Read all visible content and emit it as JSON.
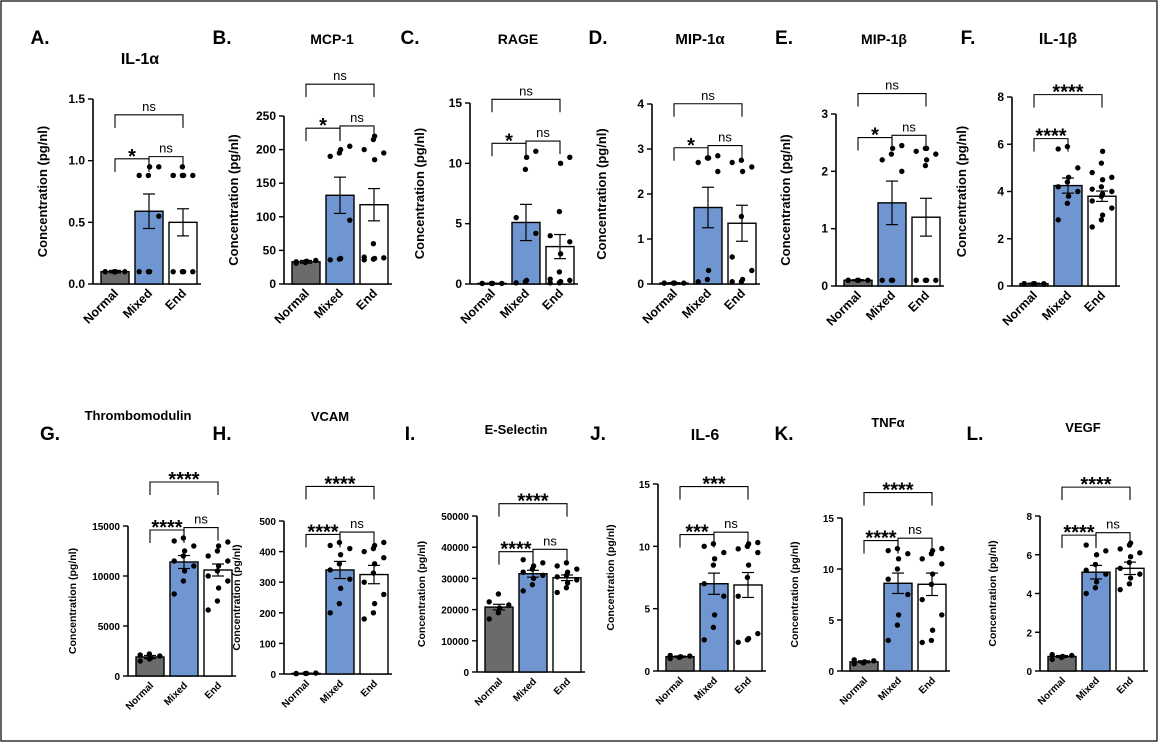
{
  "colors": {
    "normal": "#6b6b6b",
    "mixed": "#7096d1",
    "end": "#ffffff"
  },
  "chart_data": [
    {
      "type": "bar",
      "letter": "A.",
      "title": "IL-1α",
      "ylabel": "Concentration (pg/nl)",
      "categories": [
        "Normal",
        "Mixed",
        "End"
      ],
      "ylim": [
        0,
        1.5
      ],
      "yticks": [
        0,
        0.5,
        1.0,
        1.5
      ],
      "ytick_labels": [
        "0.0",
        "0.5",
        "1.0",
        "1.5"
      ],
      "values": [
        0.1,
        0.59,
        0.5
      ],
      "sem": [
        0.01,
        0.14,
        0.11
      ],
      "points": [
        [
          0.1,
          0.1,
          0.1,
          0.1,
          0.1,
          0.1
        ],
        [
          0.1,
          0.1,
          0.1,
          0.55,
          0.88,
          0.88,
          0.95,
          0.95
        ],
        [
          0.1,
          0.1,
          0.1,
          0.1,
          0.88,
          0.88,
          0.88,
          0.88,
          0.88,
          0.95
        ]
      ],
      "comparisons": [
        {
          "from": 0,
          "to": 1,
          "label": "*"
        },
        {
          "from": 1,
          "to": 2,
          "label": "ns"
        },
        {
          "from": 0,
          "to": 2,
          "label": "ns"
        }
      ]
    },
    {
      "type": "bar",
      "letter": "B.",
      "title": "MCP-1",
      "ylabel": "Concentration (pg/nl)",
      "categories": [
        "Normal",
        "Mixed",
        "End"
      ],
      "ylim": [
        0,
        250
      ],
      "yticks": [
        0,
        50,
        100,
        150,
        200,
        250
      ],
      "ytick_labels": [
        "0",
        "50",
        "100",
        "150",
        "200",
        "250"
      ],
      "values": [
        33,
        132,
        118
      ],
      "sem": [
        2,
        27,
        24
      ],
      "points": [
        [
          31,
          33,
          34,
          35,
          33,
          32
        ],
        [
          36,
          37,
          38,
          95,
          190,
          195,
          200,
          205
        ],
        [
          36,
          37,
          38,
          39,
          40,
          60,
          185,
          195,
          200,
          215,
          220
        ]
      ],
      "comparisons": [
        {
          "from": 0,
          "to": 1,
          "label": "*"
        },
        {
          "from": 1,
          "to": 2,
          "label": "ns"
        },
        {
          "from": 0,
          "to": 2,
          "label": "ns"
        }
      ]
    },
    {
      "type": "bar",
      "letter": "C.",
      "title": "RAGE",
      "ylabel": "Concentration (pg/nl)",
      "categories": [
        "Normal",
        "Mixed",
        "End"
      ],
      "ylim": [
        0,
        15
      ],
      "yticks": [
        0,
        5,
        10,
        15
      ],
      "ytick_labels": [
        "0",
        "5",
        "10",
        "15"
      ],
      "values": [
        0.05,
        5.1,
        3.1
      ],
      "sem": [
        0.02,
        1.5,
        1.0
      ],
      "points": [
        [
          0.05,
          0.05,
          0.05,
          0.05,
          0.05
        ],
        [
          0.1,
          0.2,
          0.3,
          4.2,
          5.5,
          9.5,
          10.5,
          11.0
        ],
        [
          0.1,
          0.1,
          0.2,
          0.3,
          0.4,
          1.0,
          2.5,
          3.5,
          4.0,
          6.0,
          10.0,
          10.5
        ]
      ],
      "comparisons": [
        {
          "from": 0,
          "to": 1,
          "label": "*"
        },
        {
          "from": 1,
          "to": 2,
          "label": "ns"
        },
        {
          "from": 0,
          "to": 2,
          "label": "ns"
        }
      ]
    },
    {
      "type": "bar",
      "letter": "D.",
      "title": "MIP-1α",
      "ylabel": "Concentration (pg/nl)",
      "categories": [
        "Normal",
        "Mixed",
        "End"
      ],
      "ylim": [
        0,
        4
      ],
      "yticks": [
        0,
        1,
        2,
        3,
        4
      ],
      "ytick_labels": [
        "0",
        "1",
        "2",
        "3",
        "4"
      ],
      "values": [
        0.02,
        1.7,
        1.35
      ],
      "sem": [
        0.01,
        0.45,
        0.4
      ],
      "points": [
        [
          0.02,
          0.02,
          0.02,
          0.02,
          0.02
        ],
        [
          0.05,
          0.1,
          0.3,
          2.5,
          2.7,
          2.8,
          2.8,
          2.85
        ],
        [
          0.05,
          0.05,
          0.1,
          0.3,
          0.6,
          1.5,
          2.5,
          2.6,
          2.7,
          2.75
        ]
      ],
      "comparisons": [
        {
          "from": 0,
          "to": 1,
          "label": "*"
        },
        {
          "from": 1,
          "to": 2,
          "label": "ns"
        },
        {
          "from": 0,
          "to": 2,
          "label": "ns"
        }
      ]
    },
    {
      "type": "bar",
      "letter": "E.",
      "title": "MIP-1β",
      "ylabel": "Concentration (pg/nl)",
      "categories": [
        "Normal",
        "Mixed",
        "End"
      ],
      "ylim": [
        0,
        3
      ],
      "yticks": [
        0,
        1,
        2,
        3
      ],
      "ytick_labels": [
        "0",
        "1",
        "2",
        "3"
      ],
      "values": [
        0.1,
        1.45,
        1.2
      ],
      "sem": [
        0.01,
        0.38,
        0.33
      ],
      "points": [
        [
          0.1,
          0.1,
          0.1,
          0.1,
          0.1
        ],
        [
          0.1,
          0.1,
          0.1,
          2.0,
          2.2,
          2.3,
          2.4,
          2.45
        ],
        [
          0.1,
          0.1,
          0.1,
          0.1,
          0.1,
          2.1,
          2.2,
          2.3,
          2.35,
          2.4,
          2.4
        ]
      ],
      "comparisons": [
        {
          "from": 0,
          "to": 1,
          "label": "*"
        },
        {
          "from": 1,
          "to": 2,
          "label": "ns"
        },
        {
          "from": 0,
          "to": 2,
          "label": "ns"
        }
      ]
    },
    {
      "type": "bar",
      "letter": "F.",
      "title": "IL-1β",
      "ylabel": "Concentration (pg/nl)",
      "categories": [
        "Normal",
        "Mixed",
        "End"
      ],
      "ylim": [
        0,
        8
      ],
      "yticks": [
        0,
        2,
        4,
        6,
        8
      ],
      "ytick_labels": [
        "0",
        "2",
        "4",
        "6",
        "8"
      ],
      "values": [
        0.1,
        4.25,
        3.8
      ],
      "sem": [
        0.02,
        0.32,
        0.22
      ],
      "points": [
        [
          0.1,
          0.1,
          0.1,
          0.1,
          0.1
        ],
        [
          2.8,
          3.5,
          3.8,
          4.0,
          4.2,
          4.4,
          4.6,
          5.0,
          5.8,
          5.9
        ],
        [
          2.5,
          2.8,
          3.0,
          3.3,
          3.6,
          3.8,
          3.9,
          4.0,
          4.1,
          4.2,
          4.5,
          4.6,
          4.8,
          5.2,
          5.7
        ]
      ],
      "comparisons": [
        {
          "from": 0,
          "to": 1,
          "label": "****"
        },
        {
          "from": 0,
          "to": 2,
          "label": "****"
        }
      ]
    },
    {
      "type": "bar",
      "letter": "G.",
      "title": "Thrombomodulin",
      "ylabel": "Concentration (pg/nl)",
      "categories": [
        "Normal",
        "Mixed",
        "End"
      ],
      "ylim": [
        0,
        15000
      ],
      "yticks": [
        0,
        5000,
        10000,
        15000
      ],
      "ytick_labels": [
        "0",
        "5000",
        "10000",
        "15000"
      ],
      "values": [
        1900,
        11400,
        10600
      ],
      "sem": [
        150,
        650,
        600
      ],
      "points": [
        [
          1500,
          1700,
          1800,
          2000,
          2100,
          2200
        ],
        [
          8200,
          9500,
          10500,
          11000,
          11500,
          12000,
          12500,
          13000,
          13500,
          13800
        ],
        [
          6600,
          7500,
          8800,
          9500,
          10000,
          10500,
          11000,
          11500,
          12000,
          12500,
          13000,
          13400
        ]
      ],
      "comparisons": [
        {
          "from": 0,
          "to": 1,
          "label": "****"
        },
        {
          "from": 1,
          "to": 2,
          "label": "ns"
        },
        {
          "from": 0,
          "to": 2,
          "label": "****"
        }
      ]
    },
    {
      "type": "bar",
      "letter": "H.",
      "title": "VCAM",
      "ylabel": "Concentration (pg/nl)",
      "categories": [
        "Normal",
        "Mixed",
        "End"
      ],
      "ylim": [
        0,
        500
      ],
      "yticks": [
        0,
        100,
        200,
        300,
        400,
        500
      ],
      "ytick_labels": [
        "0",
        "100",
        "200",
        "300",
        "400",
        "500"
      ],
      "values": [
        2,
        340,
        325
      ],
      "sem": [
        1,
        28,
        30
      ],
      "points": [
        [
          1,
          2,
          2,
          3,
          2
        ],
        [
          200,
          230,
          280,
          310,
          340,
          360,
          390,
          410,
          420,
          430
        ],
        [
          180,
          200,
          230,
          260,
          300,
          330,
          360,
          380,
          400,
          410,
          420,
          430
        ]
      ],
      "comparisons": [
        {
          "from": 0,
          "to": 1,
          "label": "****"
        },
        {
          "from": 1,
          "to": 2,
          "label": "ns"
        },
        {
          "from": 0,
          "to": 2,
          "label": "****"
        }
      ]
    },
    {
      "type": "bar",
      "letter": "I.",
      "title": "E-Selectin",
      "ylabel": "Concentration (pg/nl)",
      "categories": [
        "Normal",
        "Mixed",
        "End"
      ],
      "ylim": [
        0,
        50000
      ],
      "yticks": [
        0,
        10000,
        20000,
        30000,
        40000,
        50000
      ],
      "ytick_labels": [
        "0",
        "10000",
        "20000",
        "30000",
        "40000",
        "50000"
      ],
      "values": [
        20800,
        31500,
        30200
      ],
      "sem": [
        900,
        1100,
        900
      ],
      "points": [
        [
          17000,
          19000,
          20500,
          21500,
          22500,
          25000
        ],
        [
          26000,
          28000,
          30000,
          31000,
          32000,
          33000,
          34000,
          35000,
          36000
        ],
        [
          25500,
          27000,
          28500,
          29500,
          30500,
          31000,
          32000,
          33000,
          34000,
          35000
        ]
      ],
      "comparisons": [
        {
          "from": 0,
          "to": 1,
          "label": "****"
        },
        {
          "from": 1,
          "to": 2,
          "label": "ns"
        },
        {
          "from": 0,
          "to": 2,
          "label": "****"
        }
      ]
    },
    {
      "type": "bar",
      "letter": "J.",
      "title": "IL-6",
      "ylabel": "Concentration (pg/nl)",
      "categories": [
        "Normal",
        "Mixed",
        "End"
      ],
      "ylim": [
        0,
        15
      ],
      "yticks": [
        0,
        5,
        10,
        15
      ],
      "ytick_labels": [
        "0",
        "5",
        "10",
        "15"
      ],
      "values": [
        1.15,
        7.0,
        6.9
      ],
      "sem": [
        0.05,
        0.85,
        1.0
      ],
      "points": [
        [
          1.0,
          1.1,
          1.15,
          1.2,
          1.25
        ],
        [
          2.5,
          3.5,
          4.5,
          6.0,
          7.0,
          8.5,
          9.0,
          9.5,
          10.0,
          10.2
        ],
        [
          2.3,
          2.5,
          2.6,
          3.0,
          6.0,
          7.5,
          8.5,
          9.5,
          9.8,
          10.0,
          10.2,
          10.3
        ]
      ],
      "comparisons": [
        {
          "from": 0,
          "to": 1,
          "label": "***"
        },
        {
          "from": 1,
          "to": 2,
          "label": "ns"
        },
        {
          "from": 0,
          "to": 2,
          "label": "***"
        }
      ]
    },
    {
      "type": "bar",
      "letter": "K.",
      "title": "TNFα",
      "ylabel": "Concentration (pg/nl)",
      "categories": [
        "Normal",
        "Mixed",
        "End"
      ],
      "ylim": [
        0,
        15
      ],
      "yticks": [
        0,
        5,
        10,
        15
      ],
      "ytick_labels": [
        "0",
        "5",
        "10",
        "15"
      ],
      "values": [
        0.9,
        8.6,
        8.5
      ],
      "sem": [
        0.1,
        1.0,
        1.1
      ],
      "points": [
        [
          0.7,
          0.8,
          0.9,
          1.0,
          1.1
        ],
        [
          3.0,
          4.5,
          5.5,
          7.5,
          9.0,
          10.0,
          11.0,
          11.5,
          11.8,
          12.0
        ],
        [
          2.8,
          3.0,
          4.0,
          5.5,
          7.0,
          8.5,
          9.5,
          10.5,
          11.0,
          11.5,
          11.8,
          12.0
        ]
      ],
      "comparisons": [
        {
          "from": 0,
          "to": 1,
          "label": "****"
        },
        {
          "from": 1,
          "to": 2,
          "label": "ns"
        },
        {
          "from": 0,
          "to": 2,
          "label": "****"
        }
      ]
    },
    {
      "type": "bar",
      "letter": "L.",
      "title": "VEGF",
      "ylabel": "Concentration (pg/nl)",
      "categories": [
        "Normal",
        "Mixed",
        "End"
      ],
      "ylim": [
        0,
        8
      ],
      "yticks": [
        0,
        2,
        4,
        6,
        8
      ],
      "ytick_labels": [
        "0",
        "2",
        "4",
        "6",
        "8"
      ],
      "values": [
        0.75,
        5.1,
        5.3
      ],
      "sem": [
        0.05,
        0.35,
        0.32
      ],
      "points": [
        [
          0.6,
          0.7,
          0.75,
          0.8,
          0.85
        ],
        [
          4.0,
          4.3,
          4.6,
          5.0,
          5.2,
          5.5,
          6.0,
          6.2,
          6.5
        ],
        [
          4.2,
          4.5,
          4.8,
          5.0,
          5.3,
          5.6,
          5.9,
          6.1,
          6.3,
          6.5,
          6.6
        ]
      ],
      "comparisons": [
        {
          "from": 0,
          "to": 1,
          "label": "****"
        },
        {
          "from": 1,
          "to": 2,
          "label": "ns"
        },
        {
          "from": 0,
          "to": 2,
          "label": "****"
        }
      ]
    }
  ]
}
